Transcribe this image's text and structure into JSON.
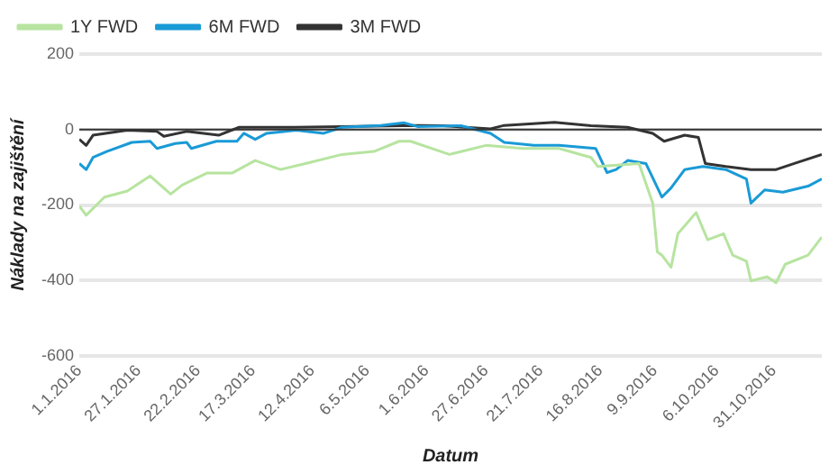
{
  "chart_data": {
    "type": "line",
    "xlabel": "Datum",
    "ylabel": "Náklady na zajištění",
    "legend": "top",
    "grid": "y",
    "marker": "none",
    "line_style": "solid",
    "xlim": [
      "2016-01-01",
      "2016-11-21"
    ],
    "xticks": [
      {
        "value": "2016-01-01",
        "label": "1.1.2016"
      },
      {
        "value": "2016-01-27",
        "label": "27.1.2016"
      },
      {
        "value": "2016-02-22",
        "label": "22.2.2016"
      },
      {
        "value": "2016-03-17",
        "label": "17.3.2016"
      },
      {
        "value": "2016-04-12",
        "label": "12.4.2016"
      },
      {
        "value": "2016-05-06",
        "label": "6.5.2016"
      },
      {
        "value": "2016-06-01",
        "label": "1.6.2016"
      },
      {
        "value": "2016-06-27",
        "label": "27.6.2016"
      },
      {
        "value": "2016-07-21",
        "label": "21.7.2016"
      },
      {
        "value": "2016-08-16",
        "label": "16.8.2016"
      },
      {
        "value": "2016-09-09",
        "label": "9.9.2016"
      },
      {
        "value": "2016-10-06",
        "label": "6.10.2016"
      },
      {
        "value": "2016-10-31",
        "label": "31.10.2016"
      }
    ],
    "ylim": [
      -600,
      200
    ],
    "yticks": [
      -600,
      -400,
      -200,
      0,
      200
    ],
    "ref_lines": [
      {
        "axis": "y",
        "value": 0,
        "color": "#333333"
      }
    ],
    "series": [
      {
        "name": "1Y FWD",
        "color": "#b7e4a0",
        "x": [
          "2016-01-01",
          "2016-01-04",
          "2016-01-12",
          "2016-01-22",
          "2016-02-01",
          "2016-02-10",
          "2016-02-15",
          "2016-02-26",
          "2016-03-08",
          "2016-03-18",
          "2016-03-29",
          "2016-04-09",
          "2016-04-25",
          "2016-05-09",
          "2016-05-20",
          "2016-05-25",
          "2016-06-11",
          "2016-06-27",
          "2016-07-13",
          "2016-07-29",
          "2016-08-12",
          "2016-08-15",
          "2016-09-02",
          "2016-09-08",
          "2016-09-10",
          "2016-09-12",
          "2016-09-16",
          "2016-09-19",
          "2016-09-27",
          "2016-10-02",
          "2016-10-09",
          "2016-10-13",
          "2016-10-19",
          "2016-10-21",
          "2016-10-28",
          "2016-11-01",
          "2016-11-05",
          "2016-11-15",
          "2016-11-21"
        ],
        "values": [
          -203,
          -227,
          -179,
          -163,
          -123,
          -171,
          -147,
          -115,
          -115,
          -82,
          -106,
          -90,
          -66,
          -58,
          -31,
          -31,
          -66,
          -42,
          -50,
          -50,
          -74,
          -98,
          -90,
          -195,
          -324,
          -333,
          -365,
          -276,
          -220,
          -292,
          -276,
          -333,
          -349,
          -401,
          -390,
          -406,
          -357,
          -333,
          -285
        ]
      },
      {
        "name": "6M FWD",
        "color": "#1a9ad6",
        "x": [
          "2016-01-01",
          "2016-01-04",
          "2016-01-07",
          "2016-01-13",
          "2016-01-24",
          "2016-02-01",
          "2016-02-04",
          "2016-02-12",
          "2016-02-17",
          "2016-02-19",
          "2016-03-01",
          "2016-03-10",
          "2016-03-13",
          "2016-03-18",
          "2016-03-23",
          "2016-04-05",
          "2016-04-17",
          "2016-04-25",
          "2016-05-12",
          "2016-05-22",
          "2016-05-28",
          "2016-06-16",
          "2016-06-29",
          "2016-07-05",
          "2016-07-18",
          "2016-07-29",
          "2016-08-14",
          "2016-08-19",
          "2016-08-23",
          "2016-08-28",
          "2016-09-05",
          "2016-09-12",
          "2016-09-16",
          "2016-09-22",
          "2016-09-30",
          "2016-10-10",
          "2016-10-19",
          "2016-10-21",
          "2016-10-27",
          "2016-11-04",
          "2016-11-15",
          "2016-11-21"
        ],
        "values": [
          -90,
          -106,
          -74,
          -58,
          -34,
          -31,
          -50,
          -37,
          -34,
          -50,
          -31,
          -31,
          -10,
          -26,
          -10,
          -2,
          -10,
          6,
          11,
          18,
          8,
          10,
          -10,
          -34,
          -42,
          -42,
          -50,
          -114,
          -106,
          -82,
          -90,
          -179,
          -155,
          -106,
          -98,
          -106,
          -131,
          -195,
          -160,
          -166,
          -150,
          -131
        ]
      },
      {
        "name": "3M FWD",
        "color": "#333333",
        "x": [
          "2016-01-01",
          "2016-01-04",
          "2016-01-07",
          "2016-01-22",
          "2016-02-04",
          "2016-02-07",
          "2016-02-17",
          "2016-03-02",
          "2016-03-11",
          "2016-04-04",
          "2016-04-25",
          "2016-05-28",
          "2016-06-08",
          "2016-06-29",
          "2016-07-05",
          "2016-07-27",
          "2016-08-12",
          "2016-08-28",
          "2016-09-08",
          "2016-09-13",
          "2016-09-22",
          "2016-09-28",
          "2016-10-01",
          "2016-10-10",
          "2016-10-21",
          "2016-11-01",
          "2016-11-09",
          "2016-11-21"
        ],
        "values": [
          -26,
          -42,
          -15,
          -2,
          -5,
          -18,
          -5,
          -15,
          6,
          6,
          8,
          11,
          10,
          2,
          11,
          19,
          10,
          6,
          -10,
          -31,
          -15,
          -21,
          -90,
          -98,
          -106,
          -106,
          -90,
          -66
        ]
      }
    ]
  }
}
